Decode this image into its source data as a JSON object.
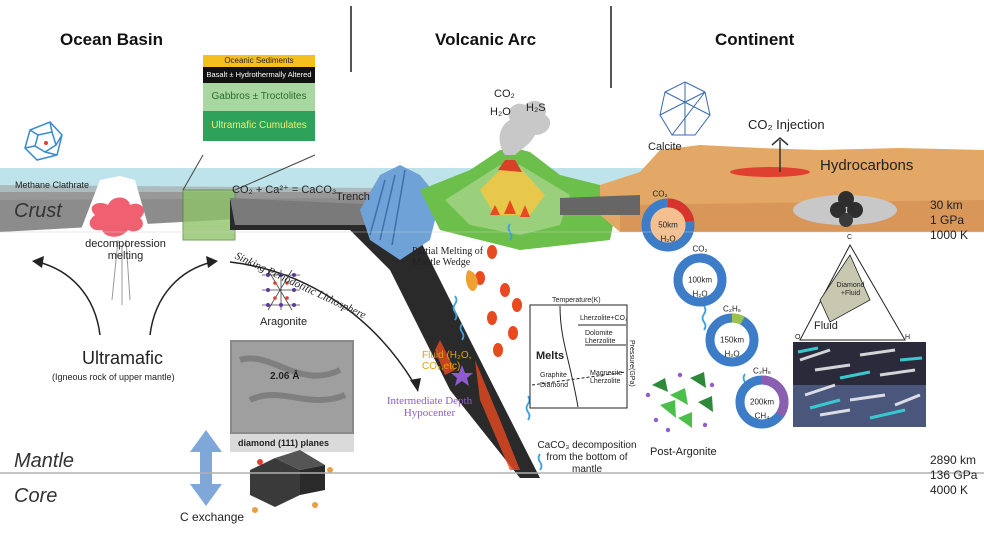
{
  "headers": {
    "ocean_basin": "Ocean Basin",
    "volcanic_arc": "Volcanic Arc",
    "continent": "Continent"
  },
  "layers": {
    "crust": "Crust",
    "mantle": "Mantle",
    "core": "Core"
  },
  "conditions": {
    "crust_depth": "30 km",
    "crust_pressure": "1 GPa",
    "crust_temp": "1000 K",
    "mantle_depth": "2890 km",
    "mantle_pressure": "136 GPa",
    "mantle_temp": "4000 K"
  },
  "ocean_column": {
    "sediments": "Oceanic Sediments",
    "basalt": "Basalt ± Hydrothermally Altered",
    "gabbros": "Gabbros ± Troctolites",
    "cumulates": "Ultramafic Cumulates"
  },
  "labels": {
    "methane_clathrate": "Methane Clathrate",
    "carbonate_reaction": "CO₂ + Ca²⁺ = CaCO₃",
    "trench": "Trench",
    "decompression": "decomporession melting",
    "sinking": "Sinking Periodotitic Lithosphere",
    "aragonite": "Aragonite",
    "ultramafic": "Ultramafic",
    "ultramafic_sub": "(Igneous rock of upper mantle)",
    "diamond_planes": "diamond (111) planes",
    "lattice_spacing": "2.06 Å",
    "c_exchange": "C exchange",
    "volcano_gases": [
      "CO₂",
      "H₂O",
      "H₂S"
    ],
    "partial_melting": "Partial Melting of Mantle Wedge",
    "fluid": "Fluid (H₂O, CO₂,etc)",
    "hypocenter": "Intermediate Depth Hypocenter",
    "caco3_decomp": "CaCO₃ decomposition from the bottom of mantle",
    "calcite": "Calcite",
    "co2_injection": "CO₂ Injection",
    "hydrocarbons": "Hydrocarbons",
    "post_argonite": "Post-Argonite"
  },
  "phase_diagram": {
    "axis_top": "Temperature(K)",
    "axis_right": "Pressure(GPa)",
    "melts": "Melts",
    "lherzolite_co2": "Lherzolite+CO₂",
    "dolomite_lherzolite": "Dolomite Lherzolite",
    "magnesite_lherzolite": "Magnesite Lherzolite",
    "graphite": "Graphite",
    "diamond": "Diamond"
  },
  "ternary": {
    "apex_top": "C",
    "region": "Diamond +Fluid",
    "fluid": "Fluid",
    "corner_left": "O",
    "corner_right": "H"
  },
  "rings": [
    {
      "depth": "50km",
      "top": "CO₂",
      "bottom": "H₂O",
      "accent": "#d8342c"
    },
    {
      "depth": "100km",
      "top": "CO₂",
      "bottom": "H₂O",
      "accent": "#3d7cc6"
    },
    {
      "depth": "150km",
      "top": "C₂H₆",
      "bottom": "H₂O",
      "accent": "#9bc24a"
    },
    {
      "depth": "200km",
      "top": "C₂H₆",
      "bottom": "CH₄",
      "accent": "#8a5fb0"
    }
  ],
  "colors": {
    "ocean": "#bfe3ea",
    "crust_grey": "#8c8c8c",
    "slab": "#2a2a2a",
    "continent": "#e3a866",
    "ring_blue": "#3d7cc6",
    "fluid_yellow": "#f0c040",
    "hypocenter": "#8e5bd0",
    "magma": "#e84a20"
  }
}
